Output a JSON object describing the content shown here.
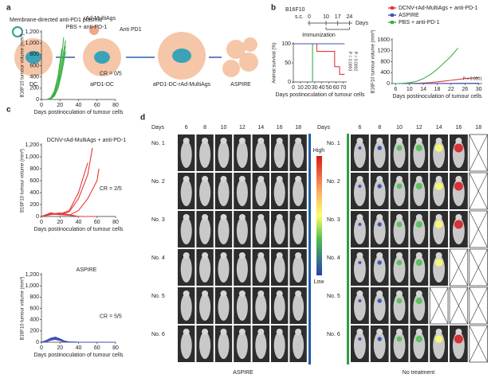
{
  "figure": {
    "a": {
      "label": "a",
      "plasmid": "Membrane-directed anti-PD1 plasmid",
      "virus": "rAd-MultiAgs",
      "antibody": "Anti PD1",
      "cells": [
        "DC",
        "aPD1-DC",
        "aPD1-DC-rAd-MultiAgs",
        "ASPIRE"
      ]
    },
    "b_label": "b",
    "c_label": "c",
    "timeline": {
      "model": "B16F10",
      "route": "s.c.",
      "ticks": [
        0,
        10,
        17,
        24
      ],
      "unit": "Days",
      "label": "Immunization"
    },
    "d": {
      "label": "d",
      "days_label": "Days",
      "days": [
        "6",
        "8",
        "10",
        "12",
        "14",
        "16",
        "18"
      ],
      "rows": [
        "No. 1",
        "No. 2",
        "No. 3",
        "No. 4",
        "No. 5",
        "No. 6"
      ],
      "high": "High",
      "low": "Low",
      "left_caption": "ASPIRE",
      "right_caption": "No treatment"
    }
  },
  "chart_data": [
    {
      "type": "line",
      "step": true,
      "ylabel": "Animal survival (%)",
      "xlabel": "Days postinoculation of tumour cells",
      "xlim": [
        0,
        75
      ],
      "ylim": [
        0,
        100
      ],
      "xticks": [
        0,
        10,
        20,
        30,
        40,
        50,
        60,
        70
      ],
      "yticks": [
        0,
        50,
        100
      ],
      "annotations": [
        "P = 0.0003",
        "P = 0.0002"
      ],
      "series": [
        {
          "color": "#e53935",
          "x": [
            0,
            33,
            58,
            65,
            72
          ],
          "values": [
            100,
            80,
            40,
            20,
            20
          ]
        },
        {
          "color": "#3cb043",
          "x": [
            0,
            27,
            30
          ],
          "values": [
            100,
            0,
            0
          ]
        },
        {
          "color": "#3f51b5",
          "x": [
            0,
            72
          ],
          "values": [
            100,
            100
          ]
        }
      ]
    },
    {
      "type": "line",
      "ylabel": "B16F10 tumour volume (mm³)",
      "xlabel": "Days postinoculation of tumour cells",
      "xlim": [
        5,
        31
      ],
      "ylim": [
        0,
        1600
      ],
      "xticks": [
        6,
        10,
        14,
        18,
        22,
        26,
        30
      ],
      "yticks": [
        0,
        400,
        800,
        1200,
        1600
      ],
      "annotations": [
        "P < 0.0001"
      ],
      "series": [
        {
          "name": "DCNV-rAd-MultiAgs + anti-PD-1",
          "color": "#e53935",
          "x": [
            6,
            8,
            10,
            12,
            14,
            16,
            18,
            20,
            22,
            24,
            26,
            28,
            30
          ],
          "values": [
            0,
            0,
            5,
            10,
            20,
            35,
            60,
            90,
            120,
            150,
            180,
            200,
            220
          ]
        },
        {
          "name": "ASPIRE",
          "color": "#3f51b5",
          "x": [
            6,
            8,
            10,
            12,
            14,
            16,
            18,
            20,
            22,
            24,
            26,
            28,
            30
          ],
          "values": [
            0,
            0,
            0,
            0,
            2,
            3,
            4,
            5,
            6,
            8,
            10,
            10,
            12
          ]
        },
        {
          "name": "PBS + anti-PD-1",
          "color": "#3cb043",
          "x": [
            6,
            8,
            10,
            12,
            14,
            16,
            18,
            20,
            22,
            24
          ],
          "values": [
            0,
            10,
            30,
            80,
            180,
            330,
            520,
            760,
            1000,
            1300
          ]
        }
      ]
    },
    {
      "type": "line",
      "title": "PBS + anti-PD-1",
      "ylabel": "B16F10 tumour volume (mm³)",
      "xlabel": "Days postinoculation of tumour cells",
      "xlim": [
        0,
        80
      ],
      "ylim": [
        0,
        1200
      ],
      "xticks": [
        0,
        20,
        40,
        60,
        80
      ],
      "yticks": [
        0,
        200,
        400,
        600,
        800,
        {
          "value": 1000,
          "label": "1,000"
        },
        {
          "value": 1200,
          "label": "1,200"
        }
      ],
      "annotations": [
        "CR = 0/5"
      ],
      "series": [
        {
          "color": "#3cb043",
          "x": [
            6,
            10,
            14,
            18,
            22,
            26
          ],
          "values": [
            0,
            20,
            100,
            300,
            650,
            1050
          ]
        },
        {
          "color": "#3cb043",
          "x": [
            6,
            10,
            14,
            18,
            22
          ],
          "values": [
            0,
            30,
            150,
            420,
            900
          ]
        },
        {
          "color": "#3cb043",
          "x": [
            6,
            10,
            14,
            18,
            22,
            26
          ],
          "values": [
            0,
            15,
            80,
            250,
            560,
            950
          ]
        },
        {
          "color": "#3cb043",
          "x": [
            6,
            10,
            14,
            18,
            22,
            24
          ],
          "values": [
            0,
            25,
            120,
            380,
            780,
            1100
          ]
        },
        {
          "color": "#3cb043",
          "x": [
            6,
            10,
            14,
            18,
            22,
            26
          ],
          "values": [
            0,
            10,
            60,
            200,
            480,
            850
          ]
        }
      ]
    },
    {
      "type": "line",
      "title": "DCNV-rAd-MultiAgs + anti-PD-1",
      "ylabel": "B16F10 tumour volume (mm³)",
      "xlabel": "Days postinoculation of tumour cells",
      "xlim": [
        0,
        80
      ],
      "ylim": [
        0,
        1200
      ],
      "xticks": [
        0,
        20,
        40,
        60,
        80
      ],
      "yticks": [
        0,
        200,
        400,
        600,
        800,
        {
          "value": 1000,
          "label": "1,000"
        },
        {
          "value": 1200,
          "label": "1,200"
        }
      ],
      "annotations": [
        "CR = 2/5"
      ],
      "series": [
        {
          "color": "#e53935",
          "x": [
            0,
            10,
            20,
            30,
            40,
            50,
            55
          ],
          "values": [
            0,
            60,
            30,
            80,
            300,
            700,
            1150
          ]
        },
        {
          "color": "#e53935",
          "x": [
            0,
            10,
            20,
            30,
            40,
            50
          ],
          "values": [
            0,
            50,
            40,
            100,
            400,
            900
          ]
        },
        {
          "color": "#e53935",
          "x": [
            0,
            10,
            20,
            30,
            40,
            50,
            60,
            62
          ],
          "values": [
            0,
            40,
            30,
            20,
            100,
            300,
            600,
            800
          ]
        },
        {
          "color": "#e53935",
          "x": [
            0,
            10,
            20,
            30,
            40,
            60
          ],
          "values": [
            0,
            40,
            60,
            30,
            0,
            0
          ]
        },
        {
          "color": "#e53935",
          "x": [
            0,
            10,
            20,
            30,
            40,
            60
          ],
          "values": [
            0,
            30,
            50,
            20,
            0,
            0
          ]
        }
      ]
    },
    {
      "type": "line",
      "title": "ASPIRE",
      "ylabel": "B16F10 tumour volume (mm³)",
      "xlabel": "Days postinoculation of tumour cells",
      "xlim": [
        0,
        80
      ],
      "ylim": [
        0,
        1200
      ],
      "xticks": [
        0,
        20,
        40,
        60,
        80
      ],
      "yticks": [
        0,
        200,
        400,
        600,
        800,
        {
          "value": 1000,
          "label": "1,000"
        },
        {
          "value": 1200,
          "label": "1,200"
        }
      ],
      "annotations": [
        "CR = 5/5"
      ],
      "series": [
        {
          "color": "#3f51b5",
          "x": [
            0,
            5,
            10,
            15,
            20,
            25,
            30,
            40,
            60,
            80
          ],
          "values": [
            0,
            30,
            70,
            90,
            60,
            20,
            5,
            0,
            0,
            0
          ]
        },
        {
          "color": "#3f51b5",
          "x": [
            0,
            5,
            10,
            15,
            20,
            25,
            30,
            40,
            60,
            80
          ],
          "values": [
            0,
            20,
            60,
            80,
            50,
            15,
            3,
            0,
            0,
            0
          ]
        },
        {
          "color": "#3f51b5",
          "x": [
            0,
            5,
            10,
            15,
            20,
            25,
            30,
            40,
            60,
            80
          ],
          "values": [
            0,
            25,
            50,
            70,
            45,
            10,
            2,
            0,
            0,
            0
          ]
        },
        {
          "color": "#3f51b5",
          "x": [
            0,
            5,
            10,
            15,
            20,
            25,
            30,
            40,
            60,
            80
          ],
          "values": [
            0,
            15,
            40,
            60,
            40,
            10,
            0,
            0,
            0,
            0
          ]
        },
        {
          "color": "#3f51b5",
          "x": [
            0,
            5,
            10,
            15,
            20,
            25,
            30,
            40,
            60,
            80
          ],
          "values": [
            0,
            10,
            35,
            50,
            30,
            5,
            0,
            0,
            0,
            0
          ]
        }
      ]
    }
  ]
}
